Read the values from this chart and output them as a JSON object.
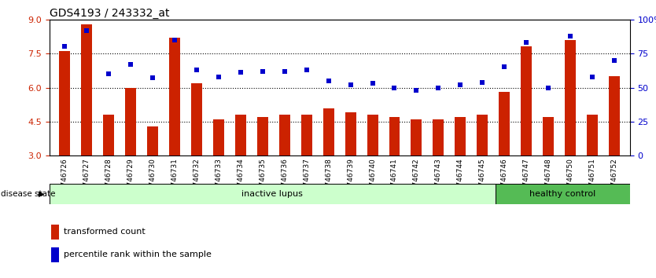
{
  "title": "GDS4193 / 243332_at",
  "samples": [
    "GSM746726",
    "GSM746727",
    "GSM746728",
    "GSM746729",
    "GSM746730",
    "GSM746731",
    "GSM746732",
    "GSM746733",
    "GSM746734",
    "GSM746735",
    "GSM746736",
    "GSM746737",
    "GSM746738",
    "GSM746739",
    "GSM746740",
    "GSM746741",
    "GSM746742",
    "GSM746743",
    "GSM746744",
    "GSM746745",
    "GSM746746",
    "GSM746747",
    "GSM746748",
    "GSM746750",
    "GSM746751",
    "GSM746752"
  ],
  "transformed_count": [
    7.6,
    8.8,
    4.8,
    6.0,
    4.3,
    8.2,
    6.2,
    4.6,
    4.8,
    4.7,
    4.8,
    4.8,
    5.1,
    4.9,
    4.8,
    4.7,
    4.6,
    4.6,
    4.7,
    4.8,
    5.8,
    7.8,
    4.7,
    8.1,
    4.8,
    6.5
  ],
  "percentile_rank": [
    80,
    92,
    60,
    67,
    57,
    85,
    63,
    58,
    61,
    62,
    62,
    63,
    55,
    52,
    53,
    50,
    48,
    50,
    52,
    54,
    65,
    83,
    50,
    88,
    58,
    70
  ],
  "disease_state": [
    "inactive lupus",
    "inactive lupus",
    "inactive lupus",
    "inactive lupus",
    "inactive lupus",
    "inactive lupus",
    "inactive lupus",
    "inactive lupus",
    "inactive lupus",
    "inactive lupus",
    "inactive lupus",
    "inactive lupus",
    "inactive lupus",
    "inactive lupus",
    "inactive lupus",
    "inactive lupus",
    "inactive lupus",
    "inactive lupus",
    "inactive lupus",
    "inactive lupus",
    "healthy control",
    "healthy control",
    "healthy control",
    "healthy control",
    "healthy control",
    "healthy control"
  ],
  "ylim_left": [
    3,
    9
  ],
  "ylim_right": [
    0,
    100
  ],
  "yticks_left": [
    3,
    4.5,
    6,
    7.5,
    9
  ],
  "yticks_right": [
    0,
    25,
    50,
    75,
    100
  ],
  "bar_color": "#cc2200",
  "dot_color": "#0000cc",
  "inactive_lupus_color": "#ccffcc",
  "healthy_control_color": "#55bb55",
  "n_inactive": 20,
  "n_healthy": 6,
  "bar_width": 0.5
}
